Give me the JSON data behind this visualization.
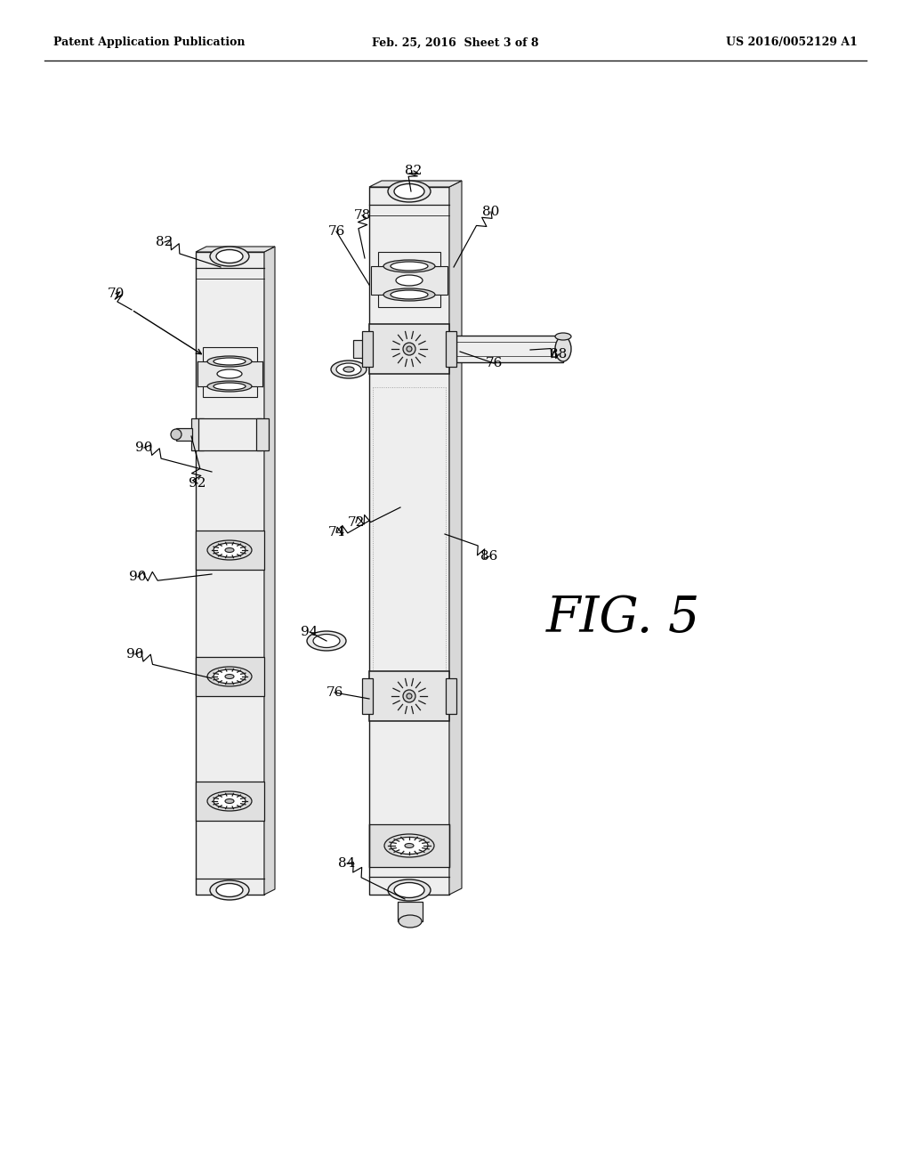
{
  "bg_color": "#ffffff",
  "header_left": "Patent Application Publication",
  "header_center": "Feb. 25, 2016  Sheet 3 of 8",
  "header_right": "US 2016/0052129 A1",
  "fig_label": "FIG. 5",
  "lc": "#1a1a1a",
  "lf": "#f0f0f0",
  "mf": "#d8d8d8",
  "df": "#b8b8b8",
  "shade": "#e8e8e8"
}
